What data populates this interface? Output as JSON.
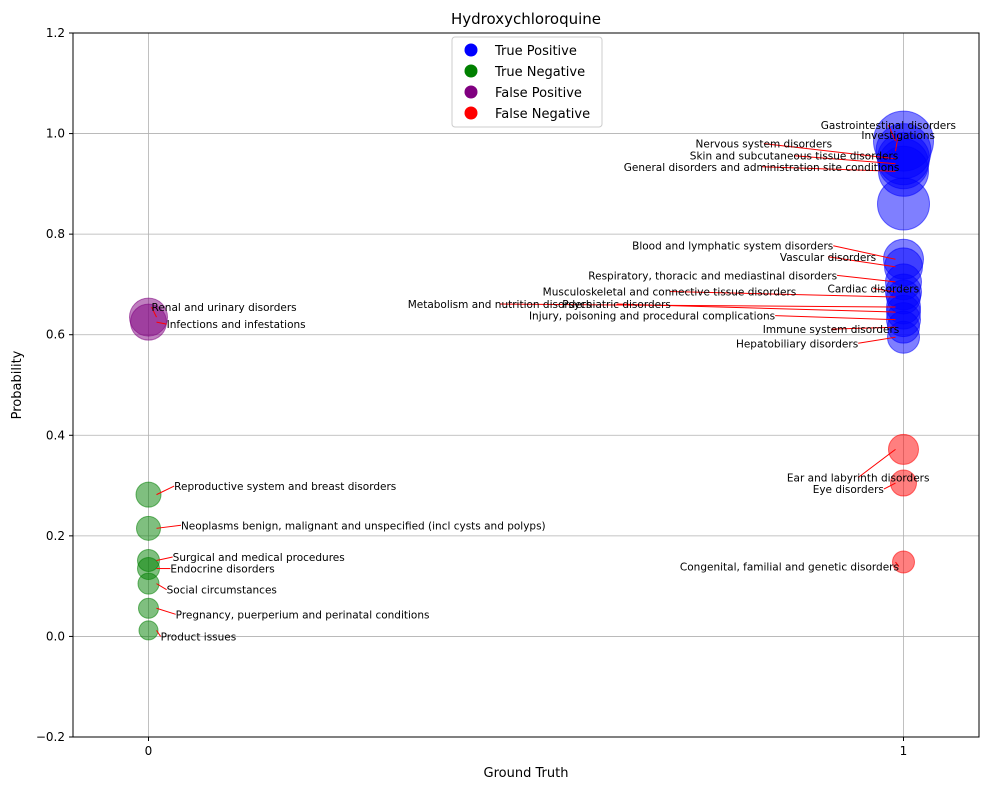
{
  "chart_data": {
    "type": "scatter",
    "title": "Hydroxychloroquine",
    "xlabel": "Ground Truth",
    "ylabel": "Probability",
    "xlim": [
      -0.1,
      1.1
    ],
    "ylim": [
      -0.2,
      1.2
    ],
    "xticks": [
      0,
      1
    ],
    "xtick_labels": [
      "0",
      "1"
    ],
    "yticks": [
      -0.2,
      0.0,
      0.2,
      0.4,
      0.6,
      0.8,
      1.0,
      1.2
    ],
    "ytick_labels": [
      "−0.2",
      "0.0",
      "0.2",
      "0.4",
      "0.6",
      "0.8",
      "1.0",
      "1.2"
    ],
    "grid": true,
    "legend_position": "top-center",
    "colors": {
      "True Positive": "#0000ff",
      "True Negative": "#008000",
      "False Positive": "#800080",
      "False Negative": "#ff0000",
      "annotation_line": "#ff0000",
      "grid": "#b0b0b0"
    },
    "legend": [
      {
        "label": "True Positive",
        "category": "True Positive"
      },
      {
        "label": "True Negative",
        "category": "True Negative"
      },
      {
        "label": "False Positive",
        "category": "False Positive"
      },
      {
        "label": "False Negative",
        "category": "False Negative"
      }
    ],
    "points": [
      {
        "label": "Gastrointestinal disorders",
        "x": 1,
        "y": 0.985,
        "size": 60,
        "category": "True Positive",
        "lx": 0.98,
        "ly": 1.017,
        "ha": "center"
      },
      {
        "label": "Investigations",
        "x": 1,
        "y": 0.965,
        "size": 55,
        "category": "True Positive",
        "lx": 0.993,
        "ly": 0.997,
        "ha": "center"
      },
      {
        "label": "Nervous system disorders",
        "x": 1,
        "y": 0.95,
        "size": 52,
        "category": "True Positive",
        "lx": 0.815,
        "ly": 0.98,
        "ha": "center"
      },
      {
        "label": "Skin and subcutaneous tissue disorders",
        "x": 1,
        "y": 0.94,
        "size": 50,
        "category": "True Positive",
        "lx": 0.855,
        "ly": 0.956,
        "ha": "center"
      },
      {
        "label": "General disorders and administration site conditions",
        "x": 1,
        "y": 0.925,
        "size": 50,
        "category": "True Positive",
        "lx": 0.812,
        "ly": 0.934,
        "ha": "center"
      },
      {
        "label": "",
        "x": 1,
        "y": 0.86,
        "size": 52,
        "category": "True Positive"
      },
      {
        "label": "Blood and lymphatic system disorders",
        "x": 1,
        "y": 0.75,
        "size": 40,
        "category": "True Positive",
        "lx": 0.907,
        "ly": 0.777,
        "ha": "right"
      },
      {
        "label": "Vascular disorders",
        "x": 1,
        "y": 0.735,
        "size": 38,
        "category": "True Positive",
        "lx": 0.9,
        "ly": 0.755,
        "ha": "center"
      },
      {
        "label": "Respiratory, thoracic and mediastinal disorders",
        "x": 1,
        "y": 0.705,
        "size": 36,
        "category": "True Positive",
        "lx": 0.912,
        "ly": 0.718,
        "ha": "right"
      },
      {
        "label": "Cardiac disorders",
        "x": 1,
        "y": 0.685,
        "size": 36,
        "category": "True Positive",
        "lx": 0.96,
        "ly": 0.692,
        "ha": "center"
      },
      {
        "label": "Musculoskeletal and connective tissue disorders",
        "x": 1,
        "y": 0.675,
        "size": 34,
        "category": "True Positive",
        "lx": 0.69,
        "ly": 0.686,
        "ha": "center"
      },
      {
        "label": "Metabolism and nutrition disorders",
        "x": 1,
        "y": 0.655,
        "size": 34,
        "category": "True Positive",
        "lx": 0.465,
        "ly": 0.661,
        "ha": "center"
      },
      {
        "label": "Psychiatric disorders",
        "x": 1,
        "y": 0.645,
        "size": 34,
        "category": "True Positive",
        "lx": 0.62,
        "ly": 0.661,
        "ha": "center"
      },
      {
        "label": "Injury, poisoning and procedural complications",
        "x": 1,
        "y": 0.63,
        "size": 34,
        "category": "True Positive",
        "lx": 0.83,
        "ly": 0.638,
        "ha": "right"
      },
      {
        "label": "Immune system disorders",
        "x": 1,
        "y": 0.615,
        "size": 32,
        "category": "True Positive",
        "lx": 0.904,
        "ly": 0.611,
        "ha": "center"
      },
      {
        "label": "Hepatobiliary disorders",
        "x": 1,
        "y": 0.595,
        "size": 32,
        "category": "True Positive",
        "lx": 0.94,
        "ly": 0.583,
        "ha": "right"
      },
      {
        "label": "Renal and urinary disorders",
        "x": 0,
        "y": 0.635,
        "size": 38,
        "category": "False Positive",
        "lx": 0.004,
        "ly": 0.655,
        "ha": "left"
      },
      {
        "label": "Infections and infestations",
        "x": 0,
        "y": 0.625,
        "size": 36,
        "category": "False Positive",
        "lx": 0.024,
        "ly": 0.621,
        "ha": "left"
      },
      {
        "label": "Ear and labyrinth disorders",
        "x": 1,
        "y": 0.372,
        "size": 30,
        "category": "False Negative",
        "lx": 0.94,
        "ly": 0.316,
        "ha": "center"
      },
      {
        "label": "Eye disorders",
        "x": 1,
        "y": 0.305,
        "size": 26,
        "category": "False Negative",
        "lx": 0.974,
        "ly": 0.293,
        "ha": "right"
      },
      {
        "label": "Congenital, familial and genetic disorders",
        "x": 1,
        "y": 0.148,
        "size": 22,
        "category": "False Negative",
        "lx": 0.994,
        "ly": 0.139,
        "ha": "right"
      },
      {
        "label": "Reproductive system and breast disorders",
        "x": 0,
        "y": 0.282,
        "size": 25,
        "category": "True Negative",
        "lx": 0.034,
        "ly": 0.299,
        "ha": "left"
      },
      {
        "label": "Neoplasms benign, malignant and unspecified (incl cysts and polyps)",
        "x": 0,
        "y": 0.215,
        "size": 24,
        "category": "True Negative",
        "lx": 0.043,
        "ly": 0.221,
        "ha": "left"
      },
      {
        "label": "Surgical and medical procedures",
        "x": 0,
        "y": 0.151,
        "size": 22,
        "category": "True Negative",
        "lx": 0.032,
        "ly": 0.158,
        "ha": "left"
      },
      {
        "label": "Endocrine disorders",
        "x": 0,
        "y": 0.135,
        "size": 22,
        "category": "True Negative",
        "lx": 0.029,
        "ly": 0.135,
        "ha": "left"
      },
      {
        "label": "Social circumstances",
        "x": 0,
        "y": 0.105,
        "size": 21,
        "category": "True Negative",
        "lx": 0.024,
        "ly": 0.093,
        "ha": "left"
      },
      {
        "label": "Pregnancy, puerperium and perinatal conditions",
        "x": 0,
        "y": 0.056,
        "size": 20,
        "category": "True Negative",
        "lx": 0.036,
        "ly": 0.044,
        "ha": "left"
      },
      {
        "label": "Product issues",
        "x": 0,
        "y": 0.012,
        "size": 19,
        "category": "True Negative",
        "lx": 0.016,
        "ly": 0.0,
        "ha": "left"
      }
    ]
  }
}
